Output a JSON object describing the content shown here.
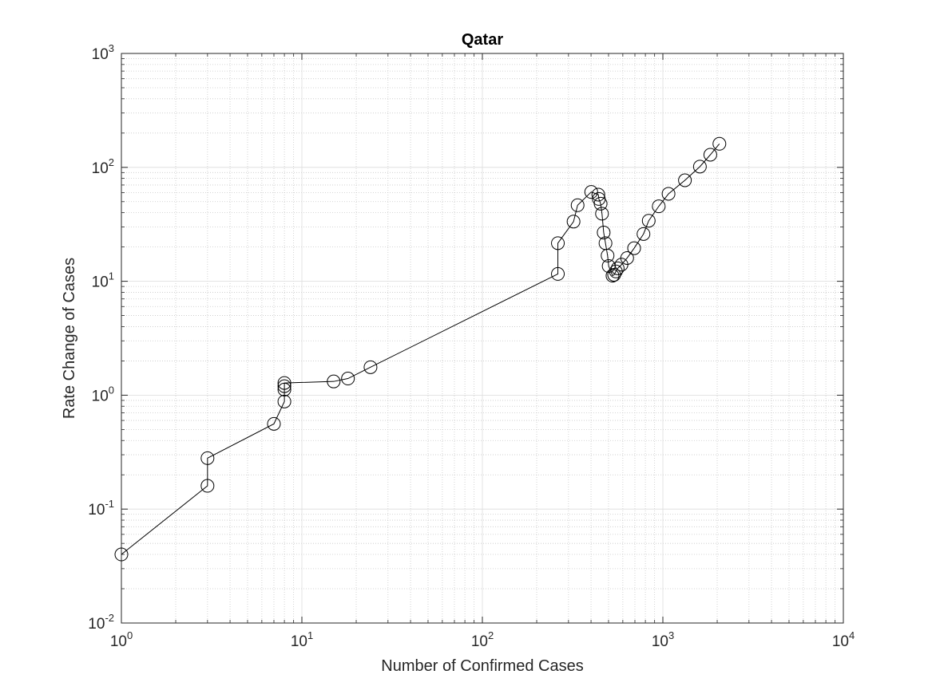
{
  "chart_data": {
    "type": "line",
    "title": "Qatar",
    "xlabel": "Number of Confirmed Cases",
    "ylabel": "Rate Change of Cases",
    "xscale": "log",
    "yscale": "log",
    "xlim": [
      1,
      10000
    ],
    "ylim": [
      0.01,
      1000
    ],
    "grid": true,
    "minor_grid": true,
    "marker": "circle-open",
    "colors": {
      "line": "#000000",
      "marker": "#000000",
      "axes": "#262626",
      "grid_major": "#dcdcdc",
      "grid_minor": "#c8c8c8"
    },
    "x_ticks": [
      {
        "base": "10",
        "exp": "0"
      },
      {
        "base": "10",
        "exp": "1"
      },
      {
        "base": "10",
        "exp": "2"
      },
      {
        "base": "10",
        "exp": "3"
      },
      {
        "base": "10",
        "exp": "4"
      }
    ],
    "y_ticks": [
      {
        "base": "10",
        "exp": "-2"
      },
      {
        "base": "10",
        "exp": "-1"
      },
      {
        "base": "10",
        "exp": "0"
      },
      {
        "base": "10",
        "exp": "1"
      },
      {
        "base": "10",
        "exp": "2"
      },
      {
        "base": "10",
        "exp": "3"
      }
    ],
    "series": [
      {
        "x": [
          1,
          3,
          3,
          7,
          8,
          8,
          8,
          8,
          15,
          18,
          24,
          262,
          262,
          320,
          337,
          401,
          439,
          442,
          452,
          460,
          470,
          481,
          494,
          501,
          526,
          537,
          549,
          562,
          590,
          634,
          693,
          781,
          835,
          949,
          1075,
          1325,
          1604,
          1832,
          2057
        ],
        "y": [
          0.04,
          0.16,
          0.28,
          0.56,
          0.88,
          1.12,
          1.2,
          1.28,
          1.32,
          1.4,
          1.76,
          11.6,
          21.6,
          33.4,
          46.5,
          60.8,
          57.6,
          52.8,
          48.0,
          39.2,
          26.8,
          21.6,
          16.8,
          13.6,
          11.2,
          11.4,
          12.2,
          13.0,
          14.0,
          16.0,
          19.5,
          26.0,
          34.0,
          45.5,
          58.6,
          77.0,
          101.5,
          129.0,
          161.0
        ]
      }
    ]
  }
}
